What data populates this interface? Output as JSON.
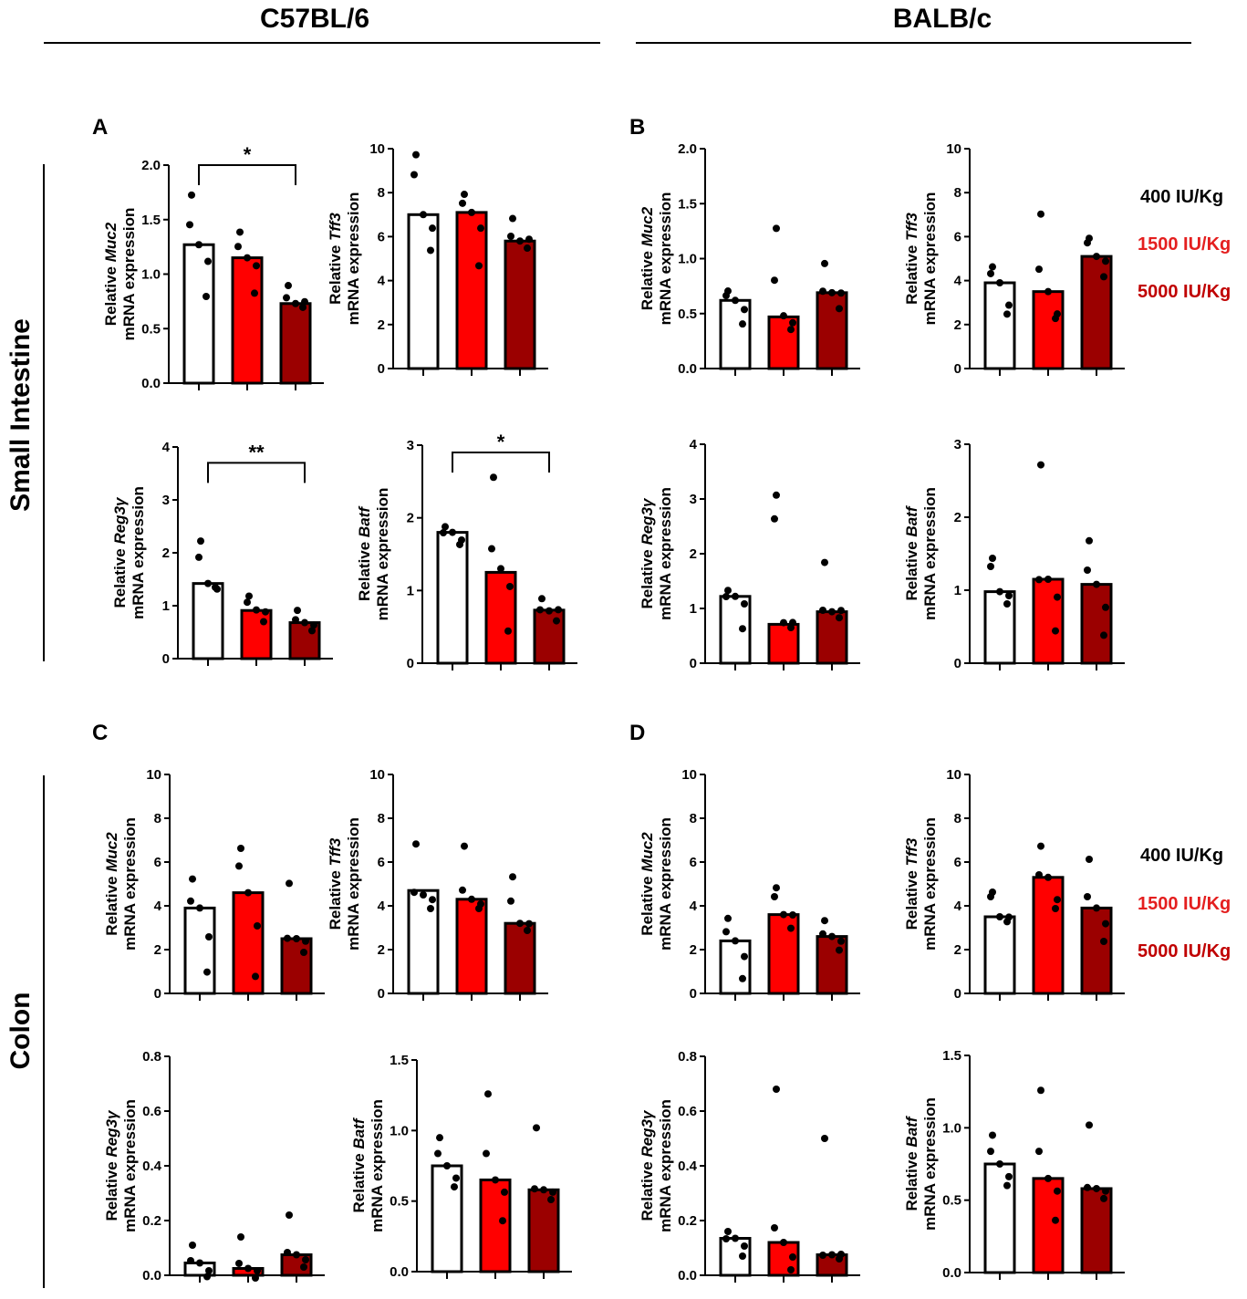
{
  "header": {
    "left_strain": "C57BL/6",
    "right_strain": "BALB/c"
  },
  "tissues": {
    "small_intestine": "Small Intestine",
    "colon": "Colon"
  },
  "panel_letters": {
    "A": "A",
    "B": "B",
    "C": "C",
    "D": "D"
  },
  "legend": {
    "items": [
      {
        "label": "400 IU/Kg",
        "color": "#000000"
      },
      {
        "label": "1500 IU/Kg",
        "color": "#e41f1f"
      },
      {
        "label": "5000 IU/Kg",
        "color": "#c00000"
      }
    ]
  },
  "colors": {
    "bar_400": "#ffffff",
    "bar_1500": "#ff0000",
    "bar_5000": "#9b0000",
    "text": "#000000"
  },
  "chart_data": [
    {
      "id": "A1",
      "panel": "A",
      "type": "bar",
      "gene": "Muc2",
      "ylabel_prefix": "Relative ",
      "ylabel_line2": "mRNA expression",
      "ylim": [
        0,
        2.0
      ],
      "yticks": [
        "0.0",
        "0.5",
        "1.0",
        "1.5",
        "2.0"
      ],
      "bars": [
        1.27,
        1.15,
        0.73
      ],
      "points": [
        [
          1.7,
          1.47,
          1.27,
          1.1,
          0.82
        ],
        [
          1.36,
          1.27,
          1.15,
          1.06,
          0.85
        ],
        [
          0.87,
          0.8,
          0.73,
          0.73,
          0.72
        ]
      ],
      "sig": [
        {
          "from": 0,
          "to": 2,
          "label": "*",
          "y": 2.0
        }
      ]
    },
    {
      "id": "A2",
      "panel": "A",
      "type": "bar",
      "gene": "Tff3",
      "ylabel_prefix": "Relative ",
      "ylabel_line2": "mRNA expression",
      "ylim": [
        0,
        10
      ],
      "yticks": [
        "0",
        "2",
        "4",
        "6",
        "8",
        "10"
      ],
      "bars": [
        7.0,
        7.1,
        5.8
      ],
      "points": [
        [
          9.6,
          8.9,
          7.0,
          6.3,
          5.5
        ],
        [
          7.8,
          7.6,
          7.1,
          6.3,
          4.8
        ],
        [
          6.7,
          6.1,
          5.8,
          5.8,
          5.6
        ]
      ],
      "sig": []
    },
    {
      "id": "A3",
      "panel": "A",
      "type": "bar",
      "gene": "Reg3γ",
      "ylabel_prefix": "Relative ",
      "ylabel_line2": "mRNA expression",
      "ylim": [
        0,
        4
      ],
      "yticks": [
        "0",
        "1",
        "2",
        "3",
        "4"
      ],
      "bars": [
        1.42,
        0.91,
        0.68
      ],
      "points": [
        [
          2.17,
          1.95,
          1.42,
          1.28,
          1.4
        ],
        [
          1.13,
          1.1,
          0.92,
          0.85,
          0.75
        ],
        [
          0.86,
          0.77,
          0.68,
          0.6,
          0.58
        ]
      ],
      "sig": [
        {
          "from": 0,
          "to": 2,
          "label": "**",
          "y": 3.7
        }
      ]
    },
    {
      "id": "A4",
      "panel": "A",
      "type": "bar",
      "gene": "Batf",
      "ylabel_prefix": "Relative ",
      "ylabel_line2": "mRNA expression",
      "ylim": [
        0,
        3
      ],
      "yticks": [
        "0",
        "1",
        "2",
        "3"
      ],
      "bars": [
        1.8,
        1.25,
        0.73
      ],
      "points": [
        [
          1.84,
          1.82,
          1.8,
          1.67,
          1.67
        ],
        [
          2.52,
          1.6,
          1.3,
          1.03,
          0.48
        ],
        [
          0.85,
          0.76,
          0.72,
          0.71,
          0.62
        ]
      ],
      "sig": [
        {
          "from": 0,
          "to": 2,
          "label": "*",
          "y": 2.9
        }
      ]
    },
    {
      "id": "B1",
      "panel": "B",
      "type": "bar",
      "gene": "Muc2",
      "ylabel_prefix": "Relative ",
      "ylabel_line2": "mRNA expression",
      "ylim": [
        0,
        2.0
      ],
      "yticks": [
        "0.0",
        "0.5",
        "1.0",
        "1.5",
        "2.0"
      ],
      "bars": [
        0.62,
        0.47,
        0.69
      ],
      "points": [
        [
          0.68,
          0.68,
          0.62,
          0.52,
          0.43
        ],
        [
          1.25,
          0.82,
          0.48,
          0.4,
          0.38
        ],
        [
          0.93,
          0.72,
          0.69,
          0.67,
          0.57
        ]
      ],
      "sig": []
    },
    {
      "id": "B2",
      "panel": "B",
      "type": "bar",
      "gene": "Tff3",
      "ylabel_prefix": "Relative ",
      "ylabel_line2": "mRNA expression",
      "ylim": [
        0,
        10
      ],
      "yticks": [
        "0",
        "2",
        "4",
        "6",
        "8",
        "10"
      ],
      "bars": [
        3.9,
        3.5,
        5.1
      ],
      "points": [
        [
          4.5,
          4.4,
          3.9,
          2.8,
          2.6
        ],
        [
          6.9,
          4.6,
          3.5,
          2.4,
          2.4
        ],
        [
          5.8,
          5.8,
          5.1,
          4.8,
          4.3
        ]
      ],
      "sig": []
    },
    {
      "id": "B3",
      "panel": "B",
      "type": "bar",
      "gene": "Reg3γ",
      "ylabel_prefix": "Relative ",
      "ylabel_line2": "mRNA expression",
      "ylim": [
        0,
        4
      ],
      "yticks": [
        "0",
        "1",
        "2",
        "3",
        "4"
      ],
      "bars": [
        1.22,
        0.71,
        0.94
      ],
      "points": [
        [
          1.28,
          1.25,
          1.22,
          1.05,
          0.68
        ],
        [
          3.02,
          2.67,
          0.74,
          0.71,
          0.7
        ],
        [
          1.79,
          1.0,
          0.94,
          0.93,
          0.88
        ]
      ],
      "sig": []
    },
    {
      "id": "B4",
      "panel": "B",
      "type": "bar",
      "gene": "Batf",
      "ylabel_prefix": "Relative ",
      "ylabel_line2": "mRNA expression",
      "ylim": [
        0,
        3
      ],
      "yticks": [
        "0",
        "1",
        "2",
        "3"
      ],
      "bars": [
        0.98,
        1.15,
        1.08
      ],
      "points": [
        [
          1.4,
          1.35,
          0.98,
          0.9,
          0.85
        ],
        [
          2.68,
          1.17,
          1.15,
          0.88,
          0.48
        ],
        [
          1.64,
          1.3,
          1.08,
          0.74,
          0.42
        ]
      ],
      "sig": []
    },
    {
      "id": "C1",
      "panel": "C",
      "type": "bar",
      "gene": "Muc2",
      "ylabel_prefix": "Relative ",
      "ylabel_line2": "mRNA expression",
      "ylim": [
        0,
        10
      ],
      "yticks": [
        "0",
        "2",
        "4",
        "6",
        "8",
        "10"
      ],
      "bars": [
        3.9,
        4.6,
        2.5
      ],
      "points": [
        [
          5.1,
          4.3,
          3.9,
          2.5,
          1.1
        ],
        [
          6.5,
          5.9,
          4.6,
          3.0,
          0.9
        ],
        [
          4.9,
          2.6,
          2.5,
          2.3,
          2.0
        ]
      ],
      "sig": []
    },
    {
      "id": "C2",
      "panel": "C",
      "type": "bar",
      "gene": "Tff3",
      "ylabel_prefix": "Relative ",
      "ylabel_line2": "mRNA expression",
      "ylim": [
        0,
        10
      ],
      "yticks": [
        "0",
        "2",
        "4",
        "6",
        "8",
        "10"
      ],
      "bars": [
        4.7,
        4.3,
        3.2
      ],
      "points": [
        [
          6.7,
          4.7,
          4.5,
          4.2,
          4.0
        ],
        [
          6.6,
          4.8,
          4.3,
          4.0,
          4.0
        ],
        [
          5.2,
          4.3,
          3.2,
          3.1,
          3.0
        ]
      ],
      "sig": []
    },
    {
      "id": "C3",
      "panel": "C",
      "type": "bar",
      "gene": "Reg3γ",
      "ylabel_prefix": "Relative ",
      "ylabel_line2": "mRNA expression",
      "ylim": [
        0,
        0.8
      ],
      "yticks": [
        "0.0",
        "0.2",
        "0.4",
        "0.6",
        "0.8"
      ],
      "bars": [
        0.045,
        0.025,
        0.075
      ],
      "points": [
        [
          0.1,
          0.06,
          0.045,
          0.01,
          0.005
        ],
        [
          0.13,
          0.05,
          0.025,
          0.01,
          0.0
        ],
        [
          0.21,
          0.09,
          0.075,
          0.05,
          0.04
        ]
      ],
      "sig": []
    },
    {
      "id": "C4",
      "panel": "C",
      "type": "bar",
      "gene": "Batf",
      "ylabel_prefix": "Relative ",
      "ylabel_line2": "mRNA expression",
      "ylim": [
        0,
        1.5
      ],
      "yticks": [
        "0.0",
        "0.5",
        "1.0",
        "1.5"
      ],
      "bars": [
        0.75,
        0.65,
        0.58
      ],
      "points": [
        [
          0.93,
          0.85,
          0.75,
          0.65,
          0.62
        ],
        [
          1.24,
          0.85,
          0.65,
          0.55,
          0.38
        ],
        [
          1.0,
          0.6,
          0.58,
          0.55,
          0.53
        ]
      ],
      "sig": []
    },
    {
      "id": "D1",
      "panel": "D",
      "type": "bar",
      "gene": "Muc2",
      "ylabel_prefix": "Relative ",
      "ylabel_line2": "mRNA expression",
      "ylim": [
        0,
        10
      ],
      "yticks": [
        "0",
        "2",
        "4",
        "6",
        "8",
        "10"
      ],
      "bars": [
        2.4,
        3.6,
        2.6
      ],
      "points": [
        [
          3.3,
          2.9,
          2.4,
          1.6,
          0.8
        ],
        [
          4.7,
          4.5,
          3.6,
          3.5,
          3.1
        ],
        [
          3.2,
          2.8,
          2.6,
          2.3,
          2.1
        ]
      ],
      "sig": []
    },
    {
      "id": "D2",
      "panel": "D",
      "type": "bar",
      "gene": "Tff3",
      "ylabel_prefix": "Relative ",
      "ylabel_line2": "mRNA expression",
      "ylim": [
        0,
        10
      ],
      "yticks": [
        "0",
        "2",
        "4",
        "6",
        "8",
        "10"
      ],
      "bars": [
        3.5,
        5.3,
        3.9
      ],
      "points": [
        [
          4.5,
          4.5,
          3.5,
          3.4,
          3.4
        ],
        [
          6.6,
          5.5,
          5.3,
          4.2,
          4.0
        ],
        [
          6.0,
          4.5,
          3.9,
          3.1,
          2.5
        ]
      ],
      "sig": []
    },
    {
      "id": "D3",
      "panel": "D",
      "type": "bar",
      "gene": "Reg3γ",
      "ylabel_prefix": "Relative ",
      "ylabel_line2": "mRNA expression",
      "ylim": [
        0,
        0.8
      ],
      "yticks": [
        "0.0",
        "0.2",
        "0.4",
        "0.6",
        "0.8"
      ],
      "bars": [
        0.135,
        0.12,
        0.075
      ],
      "points": [
        [
          0.15,
          0.14,
          0.135,
          0.1,
          0.08
        ],
        [
          0.67,
          0.18,
          0.12,
          0.06,
          0.03
        ],
        [
          0.49,
          0.08,
          0.075,
          0.07,
          0.07
        ]
      ],
      "sig": []
    },
    {
      "id": "D4",
      "panel": "D",
      "type": "bar",
      "gene": "Batf",
      "ylabel_prefix": "Relative ",
      "ylabel_line2": "mRNA expression",
      "ylim": [
        0,
        1.5
      ],
      "yticks": [
        "0.0",
        "0.5",
        "1.0",
        "1.5"
      ],
      "bars": [
        0.75,
        0.65,
        0.58
      ],
      "points": [
        [
          0.93,
          0.85,
          0.75,
          0.65,
          0.62
        ],
        [
          1.24,
          0.85,
          0.65,
          0.55,
          0.38
        ],
        [
          1.0,
          0.6,
          0.58,
          0.55,
          0.53
        ]
      ],
      "sig": []
    }
  ]
}
